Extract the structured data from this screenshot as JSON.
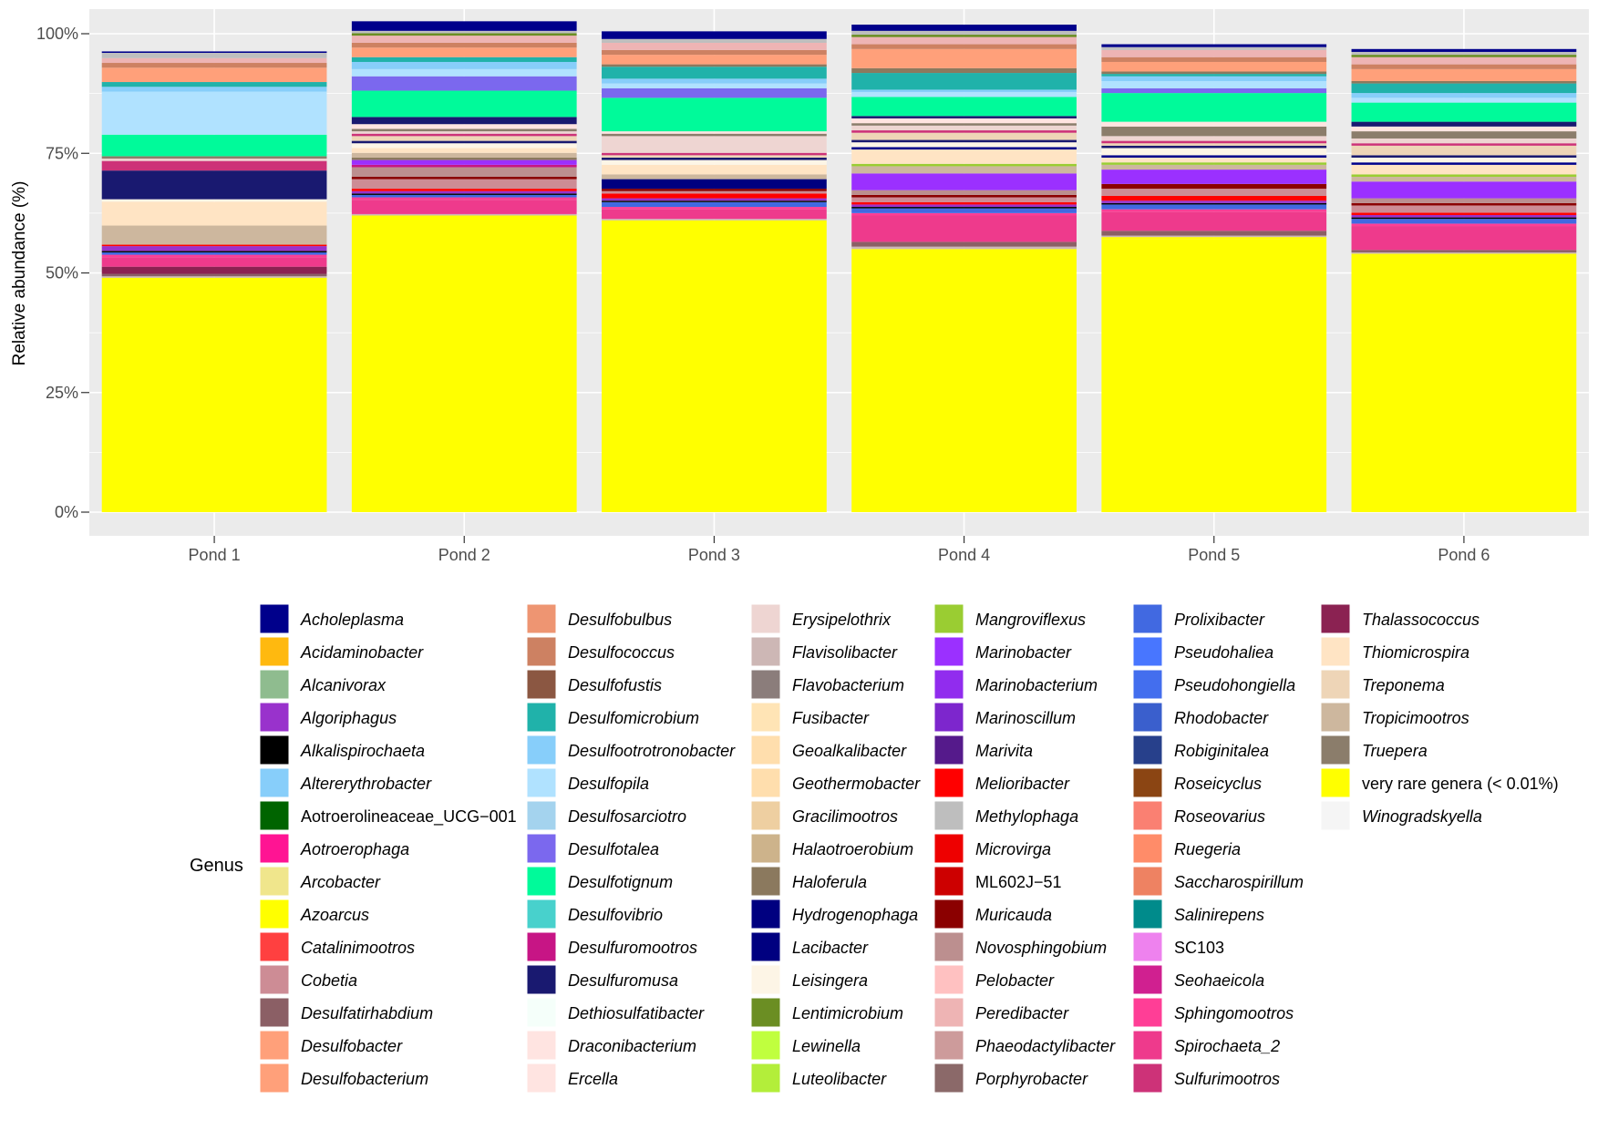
{
  "chart_data": {
    "type": "bar",
    "stacked": true,
    "xlabel": "",
    "ylabel": "Relative abundance (%)",
    "ylim": [
      0,
      100
    ],
    "yticks": [
      {
        "value": 0,
        "label": "0%"
      },
      {
        "value": 25,
        "label": "25%"
      },
      {
        "value": 50,
        "label": "50%"
      },
      {
        "value": 75,
        "label": "75%"
      },
      {
        "value": 100,
        "label": "100%"
      }
    ],
    "categories": [
      "Pond 1",
      "Pond 2",
      "Pond 3",
      "Pond 4",
      "Pond 5",
      "Pond 6"
    ],
    "grid": true,
    "legend_position": "bottom",
    "legend_title": "Genus",
    "legend": [
      {
        "name": "Acholeplasma",
        "color": "#00008b",
        "italic": true
      },
      {
        "name": "Acidaminobacter",
        "color": "#ffb90f",
        "italic": true
      },
      {
        "name": "Alcanivorax",
        "color": "#8fbc8f",
        "italic": true
      },
      {
        "name": "Algoriphagus",
        "color": "#9932cc",
        "italic": true
      },
      {
        "name": "Alkalispirochaeta",
        "color": "#000000",
        "italic": true
      },
      {
        "name": "Altererythrobacter",
        "color": "#87cefa",
        "italic": true
      },
      {
        "name": "Aotroerolineaceae_UCG−001",
        "color": "#006400",
        "italic": false
      },
      {
        "name": "Aotroerophaga",
        "color": "#ff1493",
        "italic": true
      },
      {
        "name": "Arcobacter",
        "color": "#f0e68c",
        "italic": true
      },
      {
        "name": "Azoarcus",
        "color": "#ffff00",
        "italic": true
      },
      {
        "name": "Catalinimootros",
        "color": "#ff4040",
        "italic": true
      },
      {
        "name": "Cobetia",
        "color": "#cd8c95",
        "italic": true
      },
      {
        "name": "Desulfatirhabdium",
        "color": "#8b5f65",
        "italic": true
      },
      {
        "name": "Desulfobacter",
        "color": "#ffa07a",
        "italic": true
      },
      {
        "name": "Desulfobacterium",
        "color": "#ffa07a",
        "italic": true
      },
      {
        "name": "Desulfobulbus",
        "color": "#ee9572",
        "italic": true
      },
      {
        "name": "Desulfococcus",
        "color": "#cd8162",
        "italic": true
      },
      {
        "name": "Desulfofustis",
        "color": "#8b5742",
        "italic": true
      },
      {
        "name": "Desulfomicrobium",
        "color": "#20b2aa",
        "italic": true
      },
      {
        "name": "Desulfootrotronobacter",
        "color": "#87cefa",
        "italic": true
      },
      {
        "name": "Desulfopila",
        "color": "#b0e2ff",
        "italic": true
      },
      {
        "name": "Desulfosarciotro",
        "color": "#a4d3ee",
        "italic": true
      },
      {
        "name": "Desulfotalea",
        "color": "#7b68ee",
        "italic": true
      },
      {
        "name": "Desulfotignum",
        "color": "#00fa9a",
        "italic": true
      },
      {
        "name": "Desulfovibrio",
        "color": "#48d1cc",
        "italic": true
      },
      {
        "name": "Desulfuromootros",
        "color": "#c71585",
        "italic": true
      },
      {
        "name": "Desulfuromusa",
        "color": "#191970",
        "italic": true
      },
      {
        "name": "Dethiosulfatibacter",
        "color": "#f5fffa",
        "italic": true
      },
      {
        "name": "Draconibacterium",
        "color": "#ffe4e1",
        "italic": true
      },
      {
        "name": "Ercella",
        "color": "#ffe4e1",
        "italic": true
      },
      {
        "name": "Erysipelothrix",
        "color": "#eed5d2",
        "italic": true
      },
      {
        "name": "Flavisolibacter",
        "color": "#cdb7b5",
        "italic": true
      },
      {
        "name": "Flavobacterium",
        "color": "#8b7d7b",
        "italic": true
      },
      {
        "name": "Fusibacter",
        "color": "#ffe4b5",
        "italic": true
      },
      {
        "name": "Geoalkalibacter",
        "color": "#ffdead",
        "italic": true
      },
      {
        "name": "Geothermobacter",
        "color": "#ffdead",
        "italic": true
      },
      {
        "name": "Gracilimootros",
        "color": "#eecfa1",
        "italic": true
      },
      {
        "name": "Halaotroerobium",
        "color": "#cdb38b",
        "italic": true
      },
      {
        "name": "Haloferula",
        "color": "#8b795e",
        "italic": true
      },
      {
        "name": "Hydrogenophaga",
        "color": "#000080",
        "italic": true
      },
      {
        "name": "Lacibacter",
        "color": "#000080",
        "italic": true
      },
      {
        "name": "Leisingera",
        "color": "#fdf5e6",
        "italic": true
      },
      {
        "name": "Lentimicrobium",
        "color": "#6b8e23",
        "italic": true
      },
      {
        "name": "Lewinella",
        "color": "#c0ff3e",
        "italic": true
      },
      {
        "name": "Luteolibacter",
        "color": "#b3ee3a",
        "italic": true
      },
      {
        "name": "Mangroviflexus",
        "color": "#9acd32",
        "italic": true
      },
      {
        "name": "Marinobacter",
        "color": "#9b30ff",
        "italic": true
      },
      {
        "name": "Marinobacterium",
        "color": "#912cee",
        "italic": true
      },
      {
        "name": "Marinoscillum",
        "color": "#7d26cd",
        "italic": true
      },
      {
        "name": "Marivita",
        "color": "#551a8b",
        "italic": true
      },
      {
        "name": "Melioribacter",
        "color": "#ff0000",
        "italic": true
      },
      {
        "name": "Methylophaga",
        "color": "#bebebe",
        "italic": true
      },
      {
        "name": "Microvirga",
        "color": "#ee0000",
        "italic": true
      },
      {
        "name": "ML602J−51",
        "color": "#cd0000",
        "italic": false
      },
      {
        "name": "Muricauda",
        "color": "#8b0000",
        "italic": true
      },
      {
        "name": "Novosphingobium",
        "color": "#bc8f8f",
        "italic": true
      },
      {
        "name": "Pelobacter",
        "color": "#ffc1c1",
        "italic": true
      },
      {
        "name": "Peredibacter",
        "color": "#eeb4b4",
        "italic": true
      },
      {
        "name": "Phaeodactylibacter",
        "color": "#cd9b9b",
        "italic": true
      },
      {
        "name": "Porphyrobacter",
        "color": "#8b6969",
        "italic": true
      },
      {
        "name": "Prolixibacter",
        "color": "#4169e1",
        "italic": true
      },
      {
        "name": "Pseudohaliea",
        "color": "#4876ff",
        "italic": true
      },
      {
        "name": "Pseudohongiella",
        "color": "#436eee",
        "italic": true
      },
      {
        "name": "Rhodobacter",
        "color": "#3a5fcd",
        "italic": true
      },
      {
        "name": "Robiginitalea",
        "color": "#27408b",
        "italic": true
      },
      {
        "name": "Roseicyclus",
        "color": "#8b4513",
        "italic": true
      },
      {
        "name": "Roseovarius",
        "color": "#fa8072",
        "italic": true
      },
      {
        "name": "Ruegeria",
        "color": "#ff8c69",
        "italic": true
      },
      {
        "name": "Saccharospirillum",
        "color": "#ee8262",
        "italic": true
      },
      {
        "name": "Salinirepens",
        "color": "#008b8b",
        "italic": true
      },
      {
        "name": "SC103",
        "color": "#ee82ee",
        "italic": false
      },
      {
        "name": "Seohaeicola",
        "color": "#d02090",
        "italic": true
      },
      {
        "name": "Sphingomootros",
        "color": "#ff3e96",
        "italic": true
      },
      {
        "name": "Spirochaeta_2",
        "color": "#ee3a8c",
        "italic": true
      },
      {
        "name": "Sulfurimootros",
        "color": "#cd3278",
        "italic": true
      },
      {
        "name": "Thalassococcus",
        "color": "#8b2252",
        "italic": true
      },
      {
        "name": "Thiomicrospira",
        "color": "#ffe4c4",
        "italic": true
      },
      {
        "name": "Treponema",
        "color": "#eed5b7",
        "italic": true
      },
      {
        "name": "Tropicimootros",
        "color": "#cdb79e",
        "italic": true
      },
      {
        "name": "Truepera",
        "color": "#8b7d6b",
        "italic": true
      },
      {
        "name": "very rare genera (< 0.01%)",
        "color": "#ffff00",
        "italic": false
      },
      {
        "name": "Winogradskyella",
        "color": "#f5f5f5",
        "italic": true
      }
    ],
    "series": [
      {
        "name": "very rare genera (< 0.01%)",
        "values": [
          49,
          62,
          61,
          55,
          57,
          54
        ]
      },
      {
        "name": "Azoarcus",
        "values": [
          0,
          0,
          0,
          0,
          0.5,
          0
        ]
      },
      {
        "name": "Flavisolibacter",
        "values": [
          0.3,
          0.3,
          0.3,
          0.5,
          0.3,
          0.3
        ]
      },
      {
        "name": "Desulfatirhabdium",
        "values": [
          0.5,
          0,
          0,
          1,
          1,
          0.5
        ]
      },
      {
        "name": "Thalassococcus",
        "values": [
          1.5,
          0,
          0,
          0,
          0,
          0
        ]
      },
      {
        "name": "Spirochaeta_2",
        "values": [
          2,
          3,
          2,
          5.5,
          4,
          5
        ]
      },
      {
        "name": "Sphingomootros",
        "values": [
          0.5,
          0.5,
          0.5,
          0.5,
          0.5,
          0.5
        ]
      },
      {
        "name": "Prolixibacter",
        "values": [
          0.5,
          0.5,
          1,
          1,
          1,
          1
        ]
      },
      {
        "name": "Alkalispirochaeta",
        "values": [
          0.3,
          0.3,
          0.3,
          0.3,
          0.3,
          0.3
        ]
      },
      {
        "name": "Algoriphagus",
        "values": [
          1,
          0.5,
          0.5,
          0.5,
          0.5,
          0.5
        ]
      },
      {
        "name": "Melioribacter",
        "values": [
          0.3,
          0.5,
          1,
          0.5,
          1,
          0.5
        ]
      },
      {
        "name": "Cobetia",
        "values": [
          0,
          2,
          0.5,
          1,
          1.5,
          1.5
        ]
      },
      {
        "name": "Muricauda",
        "values": [
          0,
          0.5,
          0.5,
          0.5,
          1,
          0.5
        ]
      },
      {
        "name": "Novosphingobium",
        "values": [
          0,
          2,
          0,
          1,
          0,
          1
        ]
      },
      {
        "name": "Desulfuromootros",
        "values": [
          0,
          0.5,
          0,
          0,
          0,
          0
        ]
      },
      {
        "name": "Hydrogenophaga",
        "values": [
          0,
          0,
          2,
          0,
          0,
          0
        ]
      },
      {
        "name": "Marinobacter",
        "values": [
          0,
          1,
          0,
          3.5,
          3,
          3.5
        ]
      },
      {
        "name": "Haloferula",
        "values": [
          0,
          0.5,
          0,
          0,
          0,
          0
        ]
      },
      {
        "name": "Tropicimootros",
        "values": [
          4,
          1,
          1,
          1.5,
          1,
          1
        ]
      },
      {
        "name": "Mangroviflexus",
        "values": [
          0,
          0,
          0,
          0.5,
          0.5,
          0.5
        ]
      },
      {
        "name": "Thiomicrospira",
        "values": [
          5,
          1,
          2,
          3,
          1,
          2
        ]
      },
      {
        "name": "Acholeplasma",
        "values": [
          0,
          0,
          0,
          0.5,
          0.5,
          0.5
        ]
      },
      {
        "name": "Leisingera",
        "values": [
          0.5,
          1,
          1,
          1,
          1.5,
          1
        ]
      },
      {
        "name": "Desulfuromusa",
        "values": [
          6,
          0.5,
          0.5,
          0.5,
          0.5,
          0.5
        ]
      },
      {
        "name": "Treponema",
        "values": [
          0,
          1,
          0.5,
          1.5,
          0.5,
          2
        ]
      },
      {
        "name": "Sulfurimootros",
        "values": [
          2,
          0.5,
          0.5,
          0.5,
          0.5,
          0.5
        ]
      },
      {
        "name": "Erysipelothrix",
        "values": [
          0.5,
          0.5,
          3.5,
          1,
          1,
          1
        ]
      },
      {
        "name": "Truepera",
        "values": [
          0.5,
          0.5,
          0.5,
          0.5,
          2,
          1.5
        ]
      },
      {
        "name": "Ercella",
        "values": [
          0,
          1,
          0.5,
          1,
          1,
          1
        ]
      },
      {
        "name": "Desulfuromusa",
        "values": [
          0,
          1.5,
          0,
          0.5,
          0,
          1
        ]
      },
      {
        "name": "Desulfotignum",
        "values": [
          4.5,
          5.5,
          7,
          4,
          6,
          4
        ]
      },
      {
        "name": "Desulfotalea",
        "values": [
          0,
          3,
          2,
          0,
          1,
          0
        ]
      },
      {
        "name": "Desulfopila",
        "values": [
          9,
          1.5,
          1,
          1,
          1.5,
          1
        ]
      },
      {
        "name": "Desulfootrotronobacter",
        "values": [
          1,
          1.5,
          1,
          0.5,
          1,
          1
        ]
      },
      {
        "name": "Desulfomicrobium",
        "values": [
          1,
          1,
          2.5,
          3.5,
          0.5,
          2
        ]
      },
      {
        "name": "Haloferula",
        "values": [
          0,
          0,
          0.5,
          1,
          0.5,
          0.5
        ]
      },
      {
        "name": "Desulfobacter",
        "values": [
          3,
          2,
          2,
          4,
          2,
          2.5
        ]
      },
      {
        "name": "Desulfococcus",
        "values": [
          1,
          1,
          1,
          1,
          1,
          1
        ]
      },
      {
        "name": "Peredibacter",
        "values": [
          1,
          1.5,
          1.5,
          1.5,
          1.5,
          1.5
        ]
      },
      {
        "name": "Lentimicrobium",
        "values": [
          0,
          0.5,
          0,
          0.5,
          0,
          0.5
        ]
      },
      {
        "name": "Methylophaga",
        "values": [
          1.1,
          0.5,
          0.8,
          0.8,
          0.6,
          0.6
        ]
      },
      {
        "name": "Acholeplasma",
        "values": [
          0.3,
          2,
          1.6,
          1.3,
          0.6,
          0.6
        ]
      }
    ]
  }
}
